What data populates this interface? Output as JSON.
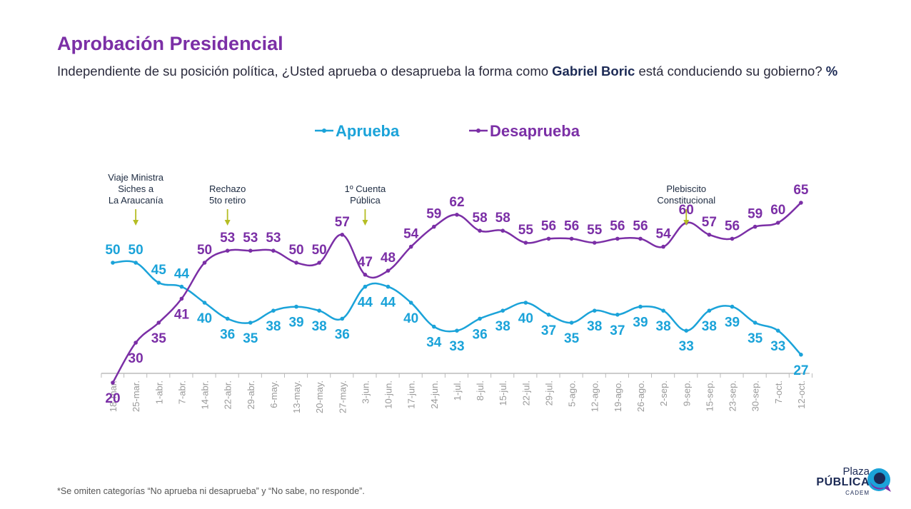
{
  "header": {
    "title": "Aprobación Presidencial",
    "subtitle_pre": "Independiente de su posición política, ¿Usted aprueba o desaprueba la forma como ",
    "subtitle_bold": "Gabriel Boric",
    "subtitle_post": " está conduciendo su gobierno? ",
    "subtitle_unit": "%"
  },
  "footnote": "*Se omiten categorías “No aprueba ni desaprueba” y “No sabe, no responde”.",
  "logo": {
    "line1": "Plaza",
    "line2": "PÚBLICA",
    "line3": "CADEM"
  },
  "colors": {
    "aprueba": "#1ba3d9",
    "desaprueba": "#7b2fa6",
    "annotation_arrow": "#b5bd24"
  },
  "chart_data": {
    "type": "line",
    "title": "Aprobación Presidencial",
    "legend_position": "top-center",
    "grid": false,
    "categories": [
      "18-mar.",
      "25-mar.",
      "1-abr.",
      "7-abr.",
      "14-abr.",
      "22-abr.",
      "29-abr.",
      "6-may.",
      "13-may.",
      "20-may.",
      "27-may.",
      "3-jun.",
      "10-jun.",
      "17-jun.",
      "24-jun.",
      "1-jul.",
      "8-jul.",
      "15-jul.",
      "22-jul.",
      "29-jul.",
      "5-ago.",
      "12-ago.",
      "19-ago.",
      "26-ago.",
      "2-sep.",
      "9-sep.",
      "15-sep.",
      "23-sep.",
      "30-sep.",
      "7-oct.",
      "12-oct."
    ],
    "series": [
      {
        "name": "Aprueba",
        "color": "#1ba3d9",
        "values": [
          50,
          50,
          45,
          44,
          40,
          36,
          35,
          38,
          39,
          38,
          36,
          44,
          44,
          40,
          34,
          33,
          36,
          38,
          40,
          37,
          35,
          38,
          37,
          39,
          38,
          33,
          38,
          39,
          35,
          33,
          27
        ]
      },
      {
        "name": "Desaprueba",
        "color": "#7b2fa6",
        "values": [
          20,
          30,
          35,
          41,
          50,
          53,
          53,
          53,
          50,
          50,
          57,
          47,
          48,
          54,
          59,
          62,
          58,
          58,
          55,
          56,
          56,
          55,
          56,
          56,
          54,
          60,
          57,
          56,
          59,
          60,
          65
        ]
      }
    ],
    "annotations": [
      {
        "index": 1,
        "text": [
          "Viaje Ministra",
          "Siches a",
          "La Araucanía"
        ]
      },
      {
        "index": 5,
        "text": [
          "Rechazo",
          "5to retiro"
        ]
      },
      {
        "index": 11,
        "text": [
          "1º Cuenta",
          "Pública"
        ]
      },
      {
        "index": 25,
        "text": [
          "Plebiscito",
          "Constitucional"
        ]
      }
    ]
  }
}
